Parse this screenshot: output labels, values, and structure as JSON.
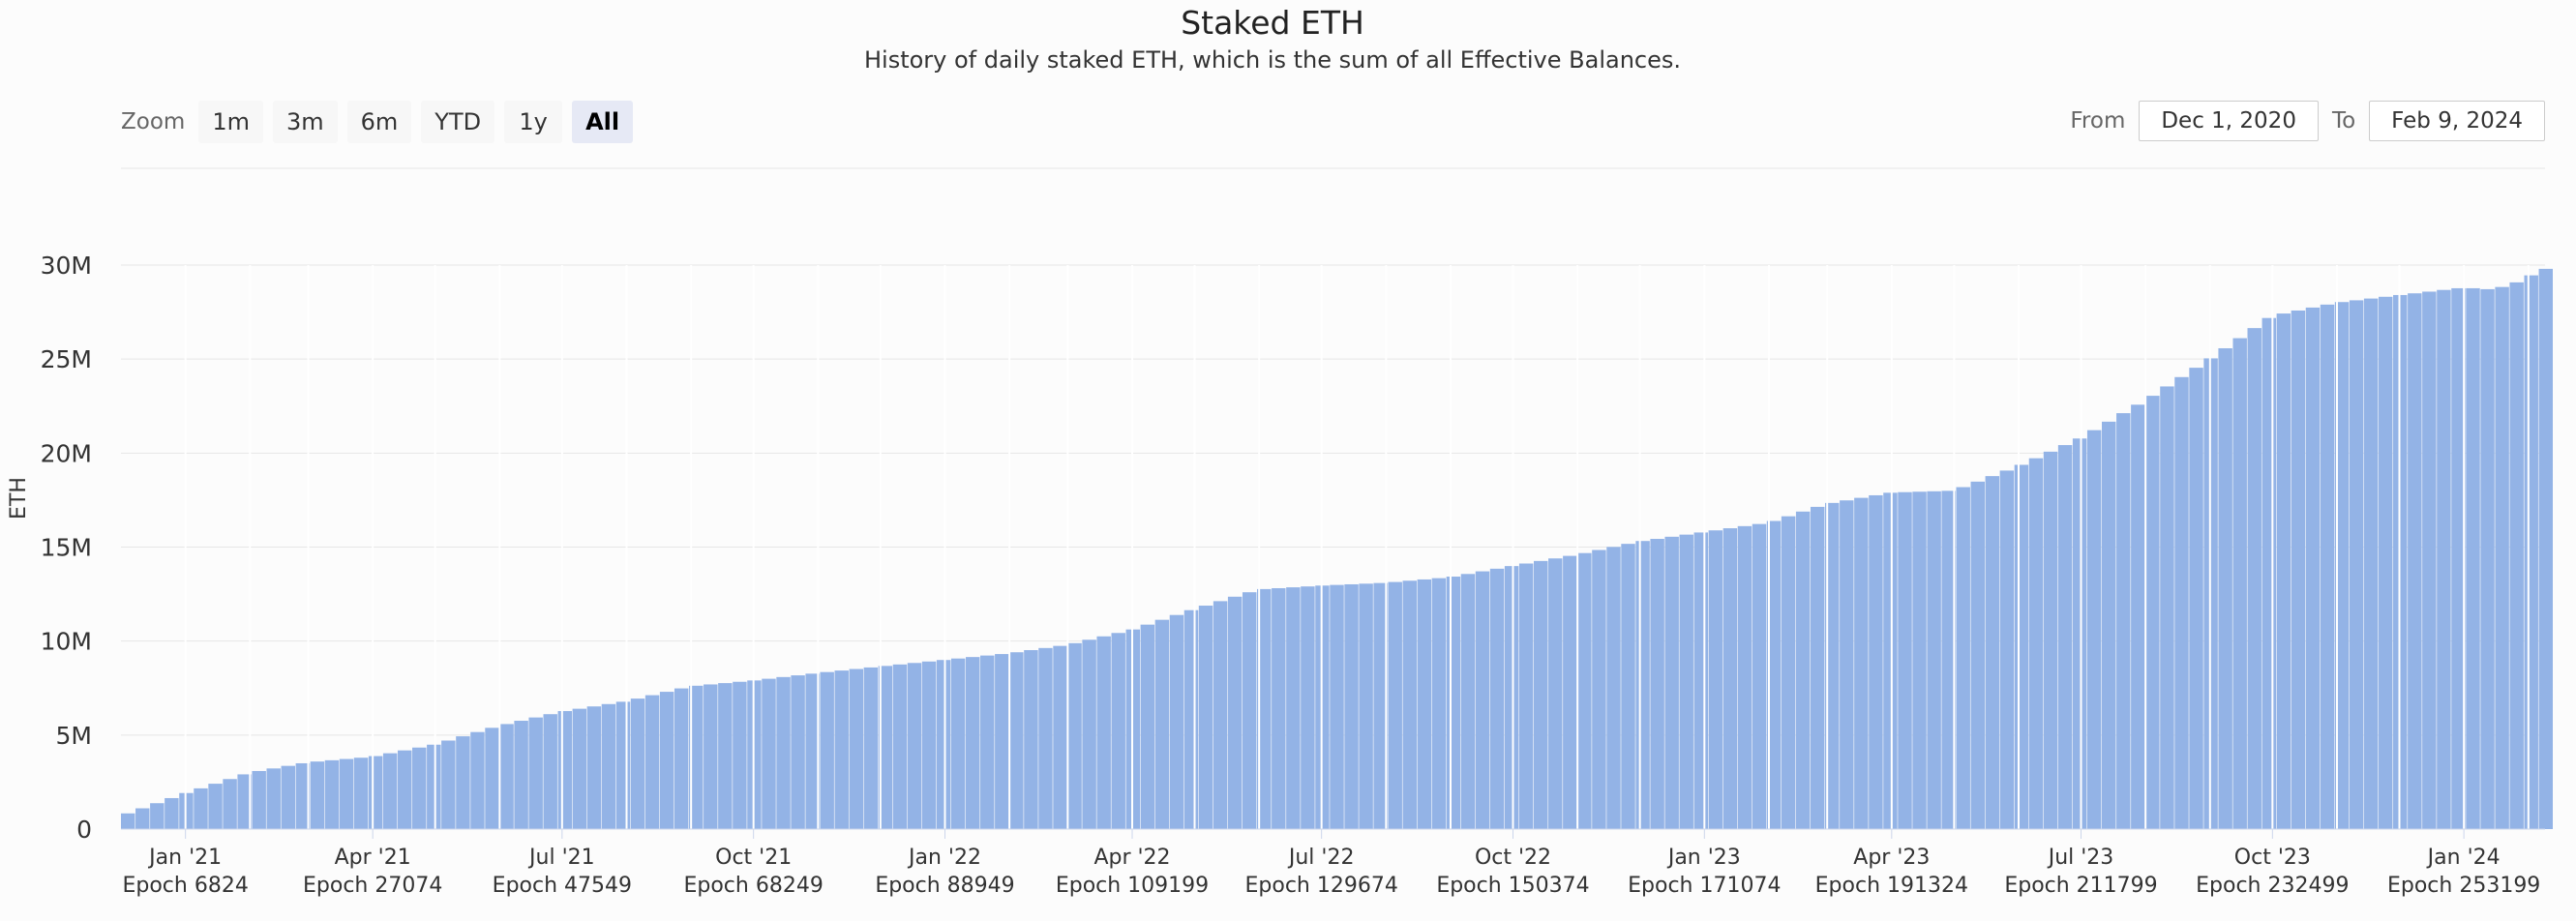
{
  "title": "Staked ETH",
  "subtitle": "History of daily staked ETH, which is the sum of all Effective Balances.",
  "zoom": {
    "label": "Zoom",
    "buttons": [
      "1m",
      "3m",
      "6m",
      "YTD",
      "1y",
      "All"
    ],
    "active": "All"
  },
  "range": {
    "from_label": "From",
    "from_value": "Dec 1, 2020",
    "to_label": "To",
    "to_value": "Feb 9, 2024"
  },
  "colors": {
    "bar": "#93b3e6",
    "grid": "#e6e6e6",
    "axis": "#ccd6eb"
  },
  "chart_data": {
    "type": "bar",
    "title": "Staked ETH",
    "subtitle": "History of daily staked ETH, which is the sum of all Effective Balances.",
    "xlabel": "",
    "ylabel": "ETH",
    "ylim": [
      0,
      30000000
    ],
    "yticks": [
      {
        "value": 0,
        "label": "0"
      },
      {
        "value": 5000000,
        "label": "5M"
      },
      {
        "value": 10000000,
        "label": "10M"
      },
      {
        "value": 15000000,
        "label": "15M"
      },
      {
        "value": 20000000,
        "label": "20M"
      },
      {
        "value": 25000000,
        "label": "25M"
      },
      {
        "value": 30000000,
        "label": "30M"
      }
    ],
    "x_range": [
      "2020-12-01",
      "2024-02-09"
    ],
    "xticks": [
      {
        "date": "2021-01-01",
        "label": "Jan '21",
        "epoch": "Epoch 6824"
      },
      {
        "date": "2021-04-01",
        "label": "Apr '21",
        "epoch": "Epoch 27074"
      },
      {
        "date": "2021-07-01",
        "label": "Jul '21",
        "epoch": "Epoch 47549"
      },
      {
        "date": "2021-10-01",
        "label": "Oct '21",
        "epoch": "Epoch 68249"
      },
      {
        "date": "2022-01-01",
        "label": "Jan '22",
        "epoch": "Epoch 88949"
      },
      {
        "date": "2022-04-01",
        "label": "Apr '22",
        "epoch": "Epoch 109199"
      },
      {
        "date": "2022-07-01",
        "label": "Jul '22",
        "epoch": "Epoch 129674"
      },
      {
        "date": "2022-10-01",
        "label": "Oct '22",
        "epoch": "Epoch 150374"
      },
      {
        "date": "2023-01-01",
        "label": "Jan '23",
        "epoch": "Epoch 171074"
      },
      {
        "date": "2023-04-01",
        "label": "Apr '23",
        "epoch": "Epoch 191324"
      },
      {
        "date": "2023-07-01",
        "label": "Jul '23",
        "epoch": "Epoch 211799"
      },
      {
        "date": "2023-10-01",
        "label": "Oct '23",
        "epoch": "Epoch 232499"
      },
      {
        "date": "2024-01-01",
        "label": "Jan '24",
        "epoch": "Epoch 253199"
      }
    ],
    "series": [
      {
        "points": [
          [
            "2020-12-01",
            700000
          ],
          [
            "2021-01-01",
            1900000
          ],
          [
            "2021-02-01",
            3000000
          ],
          [
            "2021-03-01",
            3550000
          ],
          [
            "2021-04-01",
            3850000
          ],
          [
            "2021-05-01",
            4500000
          ],
          [
            "2021-06-01",
            5500000
          ],
          [
            "2021-07-01",
            6250000
          ],
          [
            "2021-08-01",
            6800000
          ],
          [
            "2021-09-01",
            7600000
          ],
          [
            "2021-10-01",
            7900000
          ],
          [
            "2021-11-01",
            8300000
          ],
          [
            "2021-12-01",
            8650000
          ],
          [
            "2022-01-01",
            9000000
          ],
          [
            "2022-02-01",
            9350000
          ],
          [
            "2022-03-01",
            9800000
          ],
          [
            "2022-04-01",
            10600000
          ],
          [
            "2022-05-01",
            11700000
          ],
          [
            "2022-06-01",
            12750000
          ],
          [
            "2022-07-01",
            12950000
          ],
          [
            "2022-08-01",
            13100000
          ],
          [
            "2022-09-01",
            13400000
          ],
          [
            "2022-10-01",
            14000000
          ],
          [
            "2022-11-01",
            14600000
          ],
          [
            "2022-12-01",
            15300000
          ],
          [
            "2023-01-01",
            15800000
          ],
          [
            "2023-02-01",
            16300000
          ],
          [
            "2023-03-01",
            17300000
          ],
          [
            "2023-04-01",
            17900000
          ],
          [
            "2023-05-01",
            18000000
          ],
          [
            "2023-06-01",
            19300000
          ],
          [
            "2023-07-01",
            20800000
          ],
          [
            "2023-08-01",
            22800000
          ],
          [
            "2023-09-01",
            25000000
          ],
          [
            "2023-10-01",
            27300000
          ],
          [
            "2023-11-01",
            28000000
          ],
          [
            "2023-12-01",
            28400000
          ],
          [
            "2024-01-01",
            28800000
          ],
          [
            "2024-01-15",
            28700000
          ],
          [
            "2024-01-25",
            29000000
          ],
          [
            "2024-02-09",
            29800000
          ]
        ]
      }
    ]
  }
}
